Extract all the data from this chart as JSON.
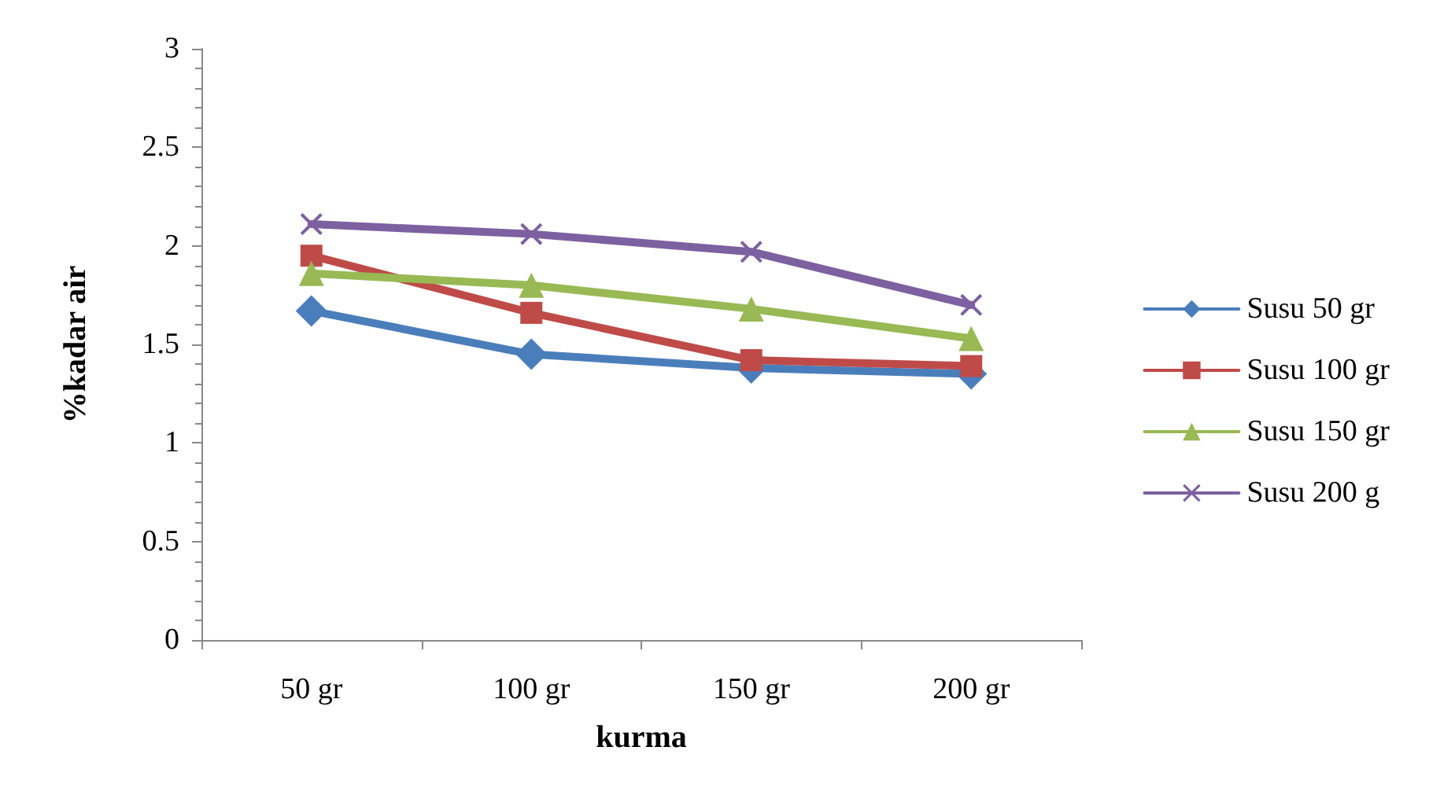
{
  "chart_data": {
    "type": "line",
    "xlabel": "kurma",
    "ylabel": "%kadar air",
    "categories": [
      "50 gr",
      "100 gr",
      "150 gr",
      "200 gr"
    ],
    "series": [
      {
        "name": "Susu 50 gr",
        "color": "#4a7ebb",
        "marker": "diamond",
        "values": [
          1.67,
          1.45,
          1.38,
          1.35
        ]
      },
      {
        "name": "Susu 100 gr",
        "color": "#be4b48",
        "marker": "square",
        "values": [
          1.95,
          1.66,
          1.42,
          1.39
        ]
      },
      {
        "name": "Susu 150 gr",
        "color": "#98b954",
        "marker": "triangle",
        "values": [
          1.86,
          1.8,
          1.68,
          1.53
        ]
      },
      {
        "name": "Susu 200 g",
        "color": "#7d60a0",
        "marker": "cross",
        "values": [
          2.11,
          2.06,
          1.97,
          1.7
        ]
      }
    ],
    "ylim": [
      0,
      3
    ],
    "yticks": [
      0,
      0.5,
      1,
      1.5,
      2,
      2.5,
      3
    ],
    "grid": false,
    "legend": "right",
    "line_style": "solid"
  }
}
